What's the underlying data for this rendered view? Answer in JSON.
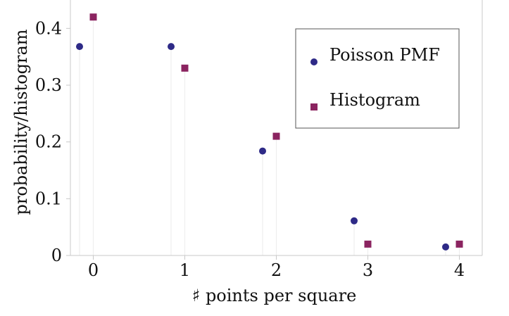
{
  "chart_data": {
    "type": "scatter",
    "xlabel": "♯ points per square",
    "ylabel": "probability/histogram",
    "xlim": [
      -0.25,
      4.25
    ],
    "ylim": [
      0,
      0.45
    ],
    "x_ticks": [
      0,
      1,
      2,
      3,
      4
    ],
    "x_tick_labels": [
      "0",
      "1",
      "2",
      "3",
      "4"
    ],
    "y_ticks": [
      0,
      0.1,
      0.2,
      0.3,
      0.4
    ],
    "y_tick_labels": [
      "0",
      "0.1",
      "0.2",
      "0.3",
      "0.4"
    ],
    "grid": false,
    "legend_position": "top-right",
    "series": [
      {
        "name": "Poisson PMF",
        "marker": "circle",
        "color": "#2e2a87",
        "x": [
          -0.15,
          0.85,
          1.85,
          2.85,
          3.85
        ],
        "y": [
          0.368,
          0.368,
          0.184,
          0.061,
          0.015
        ]
      },
      {
        "name": "Histogram",
        "marker": "square",
        "color": "#8b2460",
        "x": [
          0,
          1,
          2,
          3,
          4
        ],
        "y": [
          0.42,
          0.33,
          0.21,
          0.02,
          0.02
        ]
      }
    ]
  }
}
